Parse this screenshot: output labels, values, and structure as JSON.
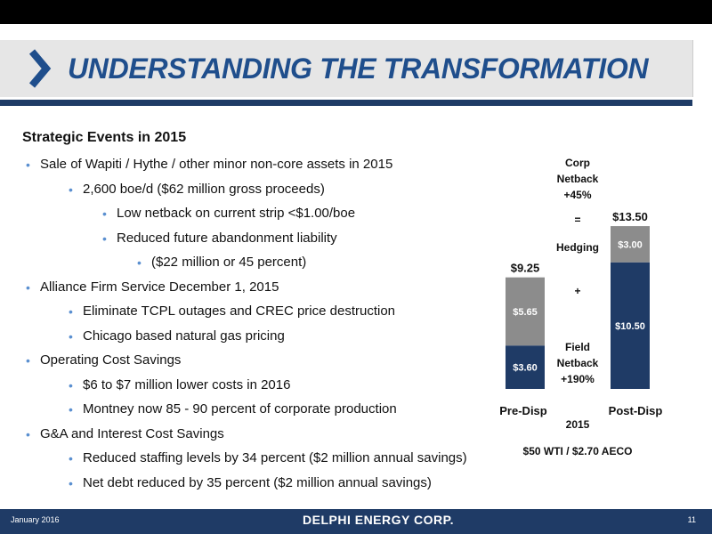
{
  "header": {
    "title": "UNDERSTANDING THE TRANSFORMATION"
  },
  "content": {
    "section_title": "Strategic Events in 2015",
    "bullets": [
      {
        "level": 1,
        "text": "Sale of Wapiti / Hythe / other minor non-core assets in 2015"
      },
      {
        "level": 2,
        "text": "2,600 boe/d ($62 million gross proceeds)"
      },
      {
        "level": 3,
        "text": "Low netback on current strip <$1.00/boe"
      },
      {
        "level": 3,
        "text": "Reduced future abandonment liability"
      },
      {
        "level": 4,
        "text": "($22 million or 45 percent)"
      },
      {
        "level": 1,
        "text": "Alliance Firm Service December 1, 2015"
      },
      {
        "level": 2,
        "text": "Eliminate TCPL outages and CREC price destruction"
      },
      {
        "level": 2,
        "text": "Chicago based natural gas pricing"
      },
      {
        "level": 1,
        "text": "Operating Cost Savings"
      },
      {
        "level": 2,
        "text": "$6 to $7 million lower costs in 2016"
      },
      {
        "level": 2,
        "text": "Montney now 85 - 90 percent of corporate production"
      },
      {
        "level": 1,
        "text": "G&A and Interest Cost Savings"
      },
      {
        "level": 2,
        "text": "Reduced staffing levels by 34 percent ($2 million annual savings)"
      },
      {
        "level": 2,
        "text": "Net debt reduced by 35 percent ($2 million annual savings)"
      }
    ]
  },
  "chart_data": {
    "type": "bar",
    "stacked": true,
    "categories": [
      "Pre-Disp",
      "Post-Disp"
    ],
    "series": [
      {
        "name": "Field Netback",
        "values": [
          3.6,
          10.5
        ],
        "color": "#1f3b66"
      },
      {
        "name": "Hedging",
        "values": [
          5.65,
          3.0
        ],
        "color": "#8c8c8c"
      }
    ],
    "value_labels": [
      [
        "$3.60",
        "$5.65"
      ],
      [
        "$10.50",
        "$3.00"
      ]
    ],
    "totals": [
      9.25,
      13.5
    ],
    "total_labels": [
      "$9.25",
      "$13.50"
    ],
    "annotations": {
      "corp": [
        "Corp",
        "Netback",
        "+45%"
      ],
      "equals": "=",
      "hedging": "Hedging",
      "plus": "+",
      "field": [
        "Field",
        "Netback",
        "+190%"
      ]
    },
    "xlabel": "2015",
    "footnote": "$50 WTI / $2.70 AECO"
  },
  "footer": {
    "date": "January 2016",
    "logo": "DELPHI ENERGY CORP.",
    "page": "11"
  }
}
